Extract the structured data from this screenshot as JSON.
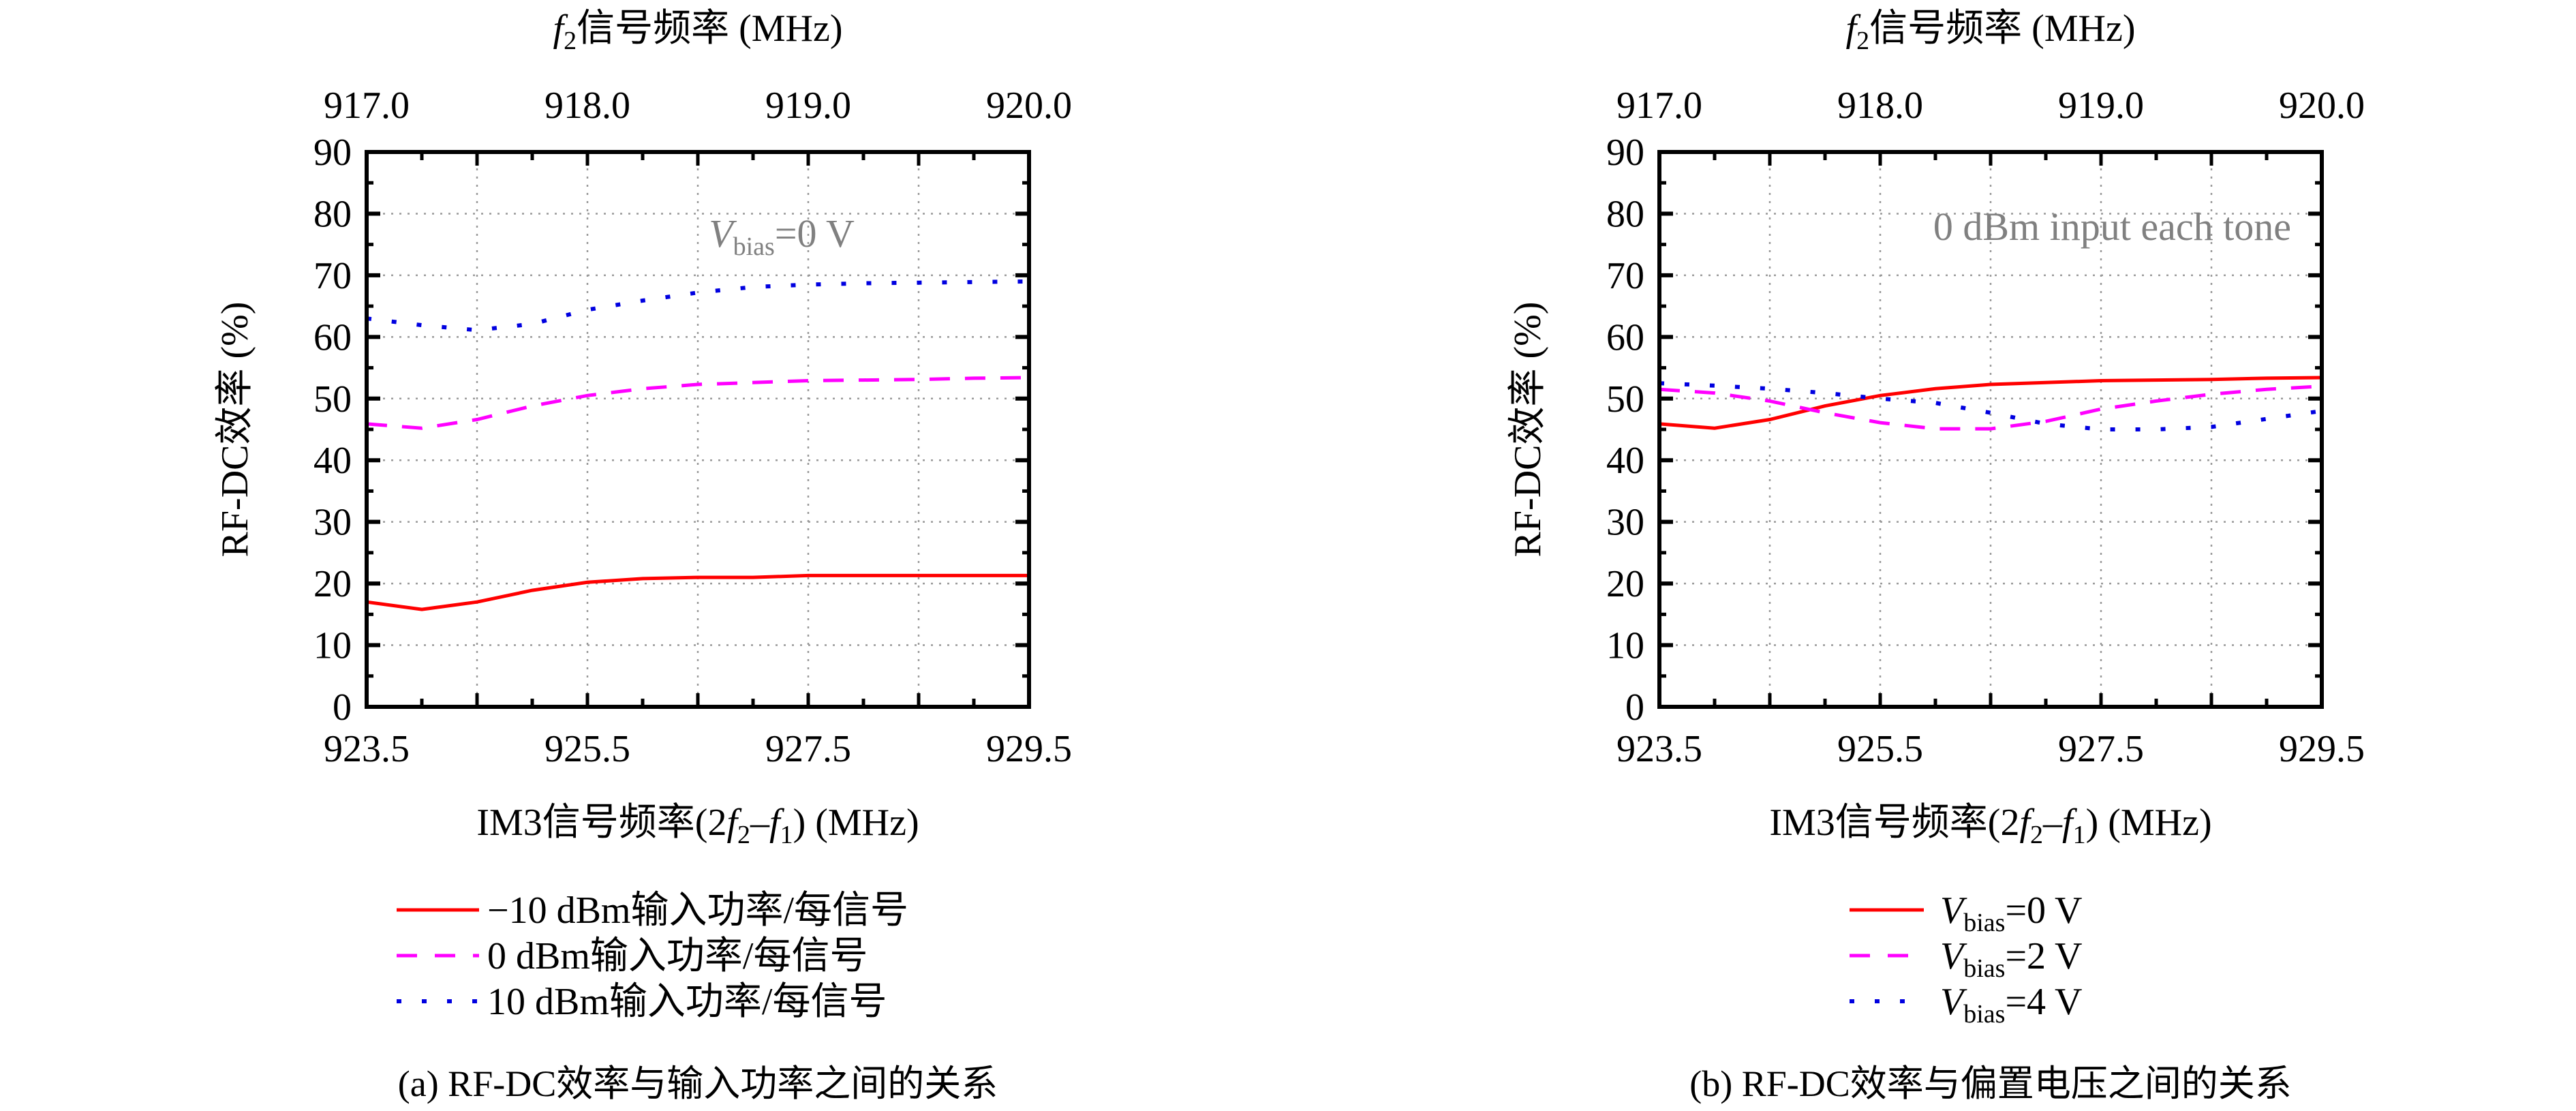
{
  "chart_data": [
    {
      "type": "line",
      "caption": "(a) RF-DC效率与输入功率之间的关系",
      "top_axis": {
        "label_var": "f",
        "label_sub": "2",
        "label_rest": "信号频率 (MHz)",
        "ticks": [
          "917.0",
          "918.0",
          "919.0",
          "920.0"
        ],
        "range": [
          917.0,
          920.0
        ]
      },
      "xlabel": {
        "pre": "IM3信号频率(2",
        "f2": "f",
        "s2": "2",
        "mid": "–",
        "f1": "f",
        "s1": "1",
        "post": ") (MHz)"
      },
      "ylabel": "RF-DC效率 (%)",
      "xlim": [
        923.5,
        929.5
      ],
      "ylim": [
        0,
        90
      ],
      "xticks": [
        "923.5",
        "925.5",
        "927.5",
        "929.5"
      ],
      "yticks": [
        "0",
        "10",
        "20",
        "30",
        "40",
        "50",
        "60",
        "70",
        "80",
        "90"
      ],
      "grid": true,
      "annotation": {
        "var": "V",
        "sub": "bias",
        "rest": "=0 V"
      },
      "legend_placement": "below",
      "x": [
        923.5,
        924.0,
        924.5,
        925.0,
        925.5,
        926.0,
        926.5,
        927.0,
        927.5,
        928.0,
        928.5,
        929.0,
        929.5
      ],
      "series": [
        {
          "name": "−10 dBm输入功率/每信号",
          "color": "#ff0000",
          "style": "solid",
          "values": [
            17.0,
            15.8,
            17.0,
            18.9,
            20.2,
            20.8,
            21.0,
            21.0,
            21.3,
            21.3,
            21.3,
            21.3,
            21.3
          ]
        },
        {
          "name": "0 dBm输入功率/每信号",
          "color": "#ff00ff",
          "style": "dashed",
          "values": [
            45.9,
            45.2,
            46.6,
            48.8,
            50.5,
            51.6,
            52.3,
            52.6,
            52.9,
            53.0,
            53.1,
            53.3,
            53.4
          ]
        },
        {
          "name": "10 dBm输入功率/每信号",
          "color": "#0000e0",
          "style": "dotted",
          "values": [
            63.0,
            61.9,
            61.1,
            62.1,
            64.4,
            65.9,
            67.2,
            68.1,
            68.5,
            68.7,
            68.8,
            68.9,
            69.0
          ]
        }
      ]
    },
    {
      "type": "line",
      "caption": "(b) RF-DC效率与偏置电压之间的关系",
      "top_axis": {
        "label_var": "f",
        "label_sub": "2",
        "label_rest": "信号频率 (MHz)",
        "ticks": [
          "917.0",
          "918.0",
          "919.0",
          "920.0"
        ],
        "range": [
          917.0,
          920.0
        ]
      },
      "xlabel": {
        "pre": "IM3信号频率(2",
        "f2": "f",
        "s2": "2",
        "mid": "–",
        "f1": "f",
        "s1": "1",
        "post": ") (MHz)"
      },
      "ylabel": "RF-DC效率 (%)",
      "xlim": [
        923.5,
        929.5
      ],
      "ylim": [
        0,
        90
      ],
      "xticks": [
        "923.5",
        "925.5",
        "927.5",
        "929.5"
      ],
      "yticks": [
        "0",
        "10",
        "20",
        "30",
        "40",
        "50",
        "60",
        "70",
        "80",
        "90"
      ],
      "grid": true,
      "annotation": {
        "text": "0 dBm input each tone"
      },
      "legend_placement": "below",
      "x": [
        923.5,
        924.0,
        924.5,
        925.0,
        925.5,
        926.0,
        926.5,
        927.0,
        927.5,
        928.0,
        928.5,
        929.0,
        929.5
      ],
      "series": [
        {
          "name_var": "V",
          "name_sub": "bias",
          "name_rest": "=0 V",
          "color": "#ff0000",
          "style": "solid",
          "values": [
            45.9,
            45.2,
            46.6,
            48.8,
            50.5,
            51.6,
            52.3,
            52.6,
            52.9,
            53.0,
            53.1,
            53.3,
            53.4
          ]
        },
        {
          "name_var": "V",
          "name_sub": "bias",
          "name_rest": "=2 V",
          "color": "#ff00ff",
          "style": "dashed",
          "values": [
            51.5,
            50.9,
            49.6,
            47.7,
            46.1,
            45.1,
            45.1,
            46.3,
            48.3,
            49.6,
            50.7,
            51.5,
            52.0
          ]
        },
        {
          "name_var": "V",
          "name_sub": "bias",
          "name_rest": "=4 V",
          "color": "#0000e0",
          "style": "dotted",
          "values": [
            52.5,
            52.1,
            51.6,
            50.9,
            50.0,
            49.3,
            47.7,
            45.9,
            45.0,
            45.0,
            45.4,
            46.7,
            48.0
          ]
        }
      ]
    }
  ]
}
